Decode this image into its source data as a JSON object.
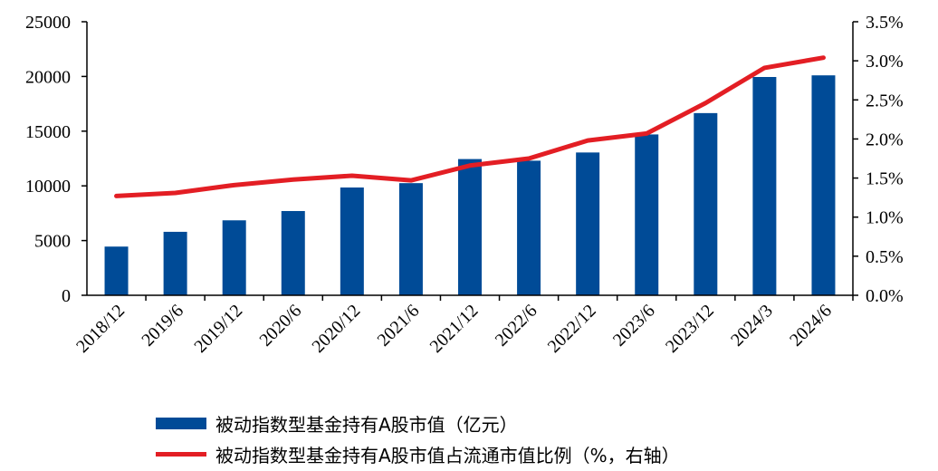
{
  "chart_data": {
    "type": "bar",
    "categories": [
      "2018/12",
      "2019/6",
      "2019/12",
      "2020/6",
      "2020/12",
      "2021/6",
      "2021/12",
      "2022/6",
      "2022/12",
      "2023/6",
      "2023/12",
      "2024/3",
      "2024/6"
    ],
    "series": [
      {
        "name": "被动指数型基金持有A股市值（亿元）",
        "type": "bar",
        "axis": "left",
        "color": "#004b97",
        "values": [
          4450,
          5800,
          6850,
          7700,
          9850,
          10250,
          12450,
          12300,
          13050,
          14700,
          16650,
          19950,
          20100
        ]
      },
      {
        "name": "被动指数型基金持有A股市值占流通市值比例（%，右轴）",
        "type": "line",
        "axis": "right",
        "color": "#e31e24",
        "values": [
          1.27,
          1.31,
          1.41,
          1.48,
          1.53,
          1.47,
          1.66,
          1.75,
          1.98,
          2.07,
          2.46,
          2.91,
          3.04
        ]
      }
    ],
    "left_axis": {
      "ylim": [
        0,
        25000
      ],
      "ticks": [
        "0",
        "5000",
        "10000",
        "15000",
        "20000",
        "25000"
      ]
    },
    "right_axis": {
      "ylim": [
        0,
        3.5
      ],
      "ticks": [
        "0.0%",
        "0.5%",
        "1.0%",
        "1.5%",
        "2.0%",
        "2.5%",
        "3.0%",
        "3.5%"
      ]
    },
    "grid": false,
    "legend_position": "bottom"
  }
}
